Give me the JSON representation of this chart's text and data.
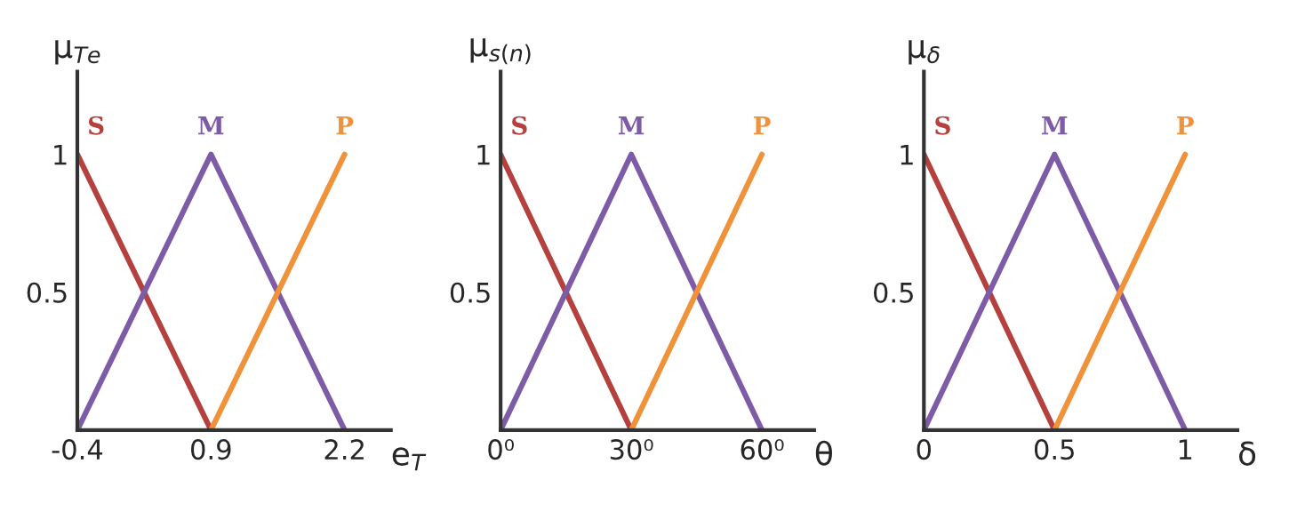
{
  "chart_data": [
    {
      "type": "line",
      "xlabel": "e$_{T}$",
      "ylabel": "μ$_{Te}$",
      "xlim": [
        -0.4,
        2.65
      ],
      "ylim": [
        0,
        1.3
      ],
      "xticks": [
        -0.4,
        0.9,
        2.2
      ],
      "yticks": [
        0.5,
        1
      ],
      "grid": false,
      "legend": false,
      "series": [
        {
          "name": "S",
          "color": "#b5413f",
          "x": [
            -0.4,
            0.9
          ],
          "values": [
            1,
            0
          ]
        },
        {
          "name": "M",
          "color": "#7d5ba6",
          "x": [
            -0.4,
            0.9,
            2.2
          ],
          "values": [
            0,
            1,
            0
          ]
        },
        {
          "name": "P",
          "color": "#f0923a",
          "x": [
            0.9,
            2.2
          ],
          "values": [
            0,
            1
          ]
        }
      ]
    },
    {
      "type": "line",
      "xlabel": "θ",
      "ylabel": "μ$_{s(n)}$",
      "xlim": [
        0,
        72
      ],
      "ylim": [
        0,
        1.3
      ],
      "xticks": [
        {
          "value": 0,
          "label": "0⁰"
        },
        {
          "value": 30,
          "label": "30⁰"
        },
        {
          "value": 60,
          "label": "60⁰"
        }
      ],
      "yticks": [
        0.5,
        1
      ],
      "grid": false,
      "legend": false,
      "series": [
        {
          "name": "S",
          "color": "#b5413f",
          "x": [
            0,
            30
          ],
          "values": [
            1,
            0
          ]
        },
        {
          "name": "M",
          "color": "#7d5ba6",
          "x": [
            0,
            30,
            60
          ],
          "values": [
            0,
            1,
            0
          ]
        },
        {
          "name": "P",
          "color": "#f0923a",
          "x": [
            30,
            60
          ],
          "values": [
            0,
            1
          ]
        }
      ]
    },
    {
      "type": "line",
      "xlabel": "δ",
      "ylabel": "μ$_{δ}$",
      "xlim": [
        0,
        1.2
      ],
      "ylim": [
        0,
        1.3
      ],
      "xticks": [
        0,
        0.5,
        1
      ],
      "yticks": [
        0.5,
        1
      ],
      "grid": false,
      "legend": false,
      "series": [
        {
          "name": "S",
          "color": "#b5413f",
          "x": [
            0,
            0.5
          ],
          "values": [
            1,
            0
          ]
        },
        {
          "name": "M",
          "color": "#7d5ba6",
          "x": [
            0,
            0.5,
            1
          ],
          "values": [
            0,
            1,
            0
          ]
        },
        {
          "name": "P",
          "color": "#f0923a",
          "x": [
            0.5,
            1
          ],
          "values": [
            0,
            1
          ]
        }
      ]
    }
  ]
}
